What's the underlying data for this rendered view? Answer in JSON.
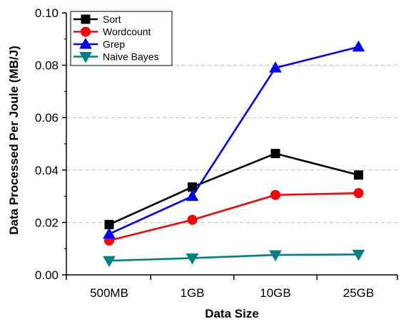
{
  "chart_data": {
    "type": "line",
    "title": "",
    "xlabel": "Data Size",
    "ylabel": "Data Processed Per Joule (MB/J)",
    "categories": [
      "500MB",
      "1GB",
      "10GB",
      "25GB"
    ],
    "ylim": [
      0.0,
      0.1
    ],
    "yticks": [
      "0.00",
      "0.02",
      "0.04",
      "0.06",
      "0.08",
      "0.10"
    ],
    "grid": "horizontal-dashed",
    "legend_position": "top-left",
    "series": [
      {
        "name": "Sort",
        "values": [
          0.0192,
          0.0335,
          0.0463,
          0.0381
        ],
        "color": "#000000",
        "marker": "square"
      },
      {
        "name": "Wordcount",
        "values": [
          0.0131,
          0.021,
          0.0305,
          0.0312
        ],
        "color": "#ff0000",
        "marker": "circle"
      },
      {
        "name": "Grep",
        "values": [
          0.0156,
          0.03,
          0.079,
          0.087
        ],
        "color": "#0000ff",
        "marker": "triangle-up"
      },
      {
        "name": "Naive Bayes",
        "values": [
          0.0054,
          0.0064,
          0.0076,
          0.0078
        ],
        "color": "#008080",
        "marker": "triangle-down"
      }
    ]
  }
}
